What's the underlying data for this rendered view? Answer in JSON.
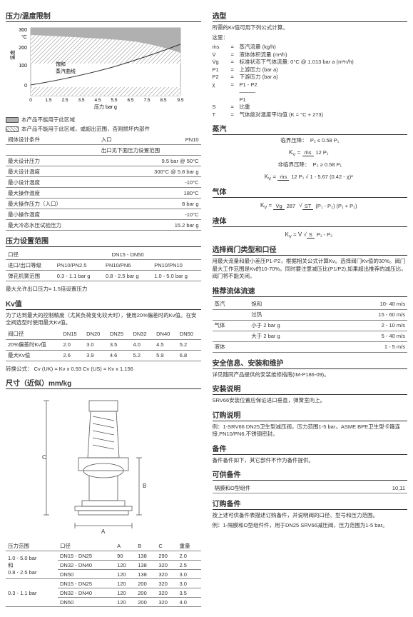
{
  "left": {
    "chart": {
      "title": "压力/温度限制",
      "ylabel": "温度",
      "yunit": "°C",
      "xlabel": "压力 bar g",
      "xlim": [
        0,
        9.5
      ],
      "ylim": [
        -20,
        300
      ],
      "yticks": [
        0,
        100,
        200,
        300
      ],
      "xticks": [
        0,
        1.5,
        2.5,
        3.5,
        4.5,
        5.5,
        6.5,
        7.5,
        8.5,
        9.5
      ],
      "curve_label_top": "饱和",
      "curve_label_bottom": "蒸汽曲线",
      "forbidden_fill": "#b0b0b0",
      "hatch_pattern": "diag",
      "legend1": "本产品不能用于此区域",
      "legend2": "本产品不能用于此区域，或超出范围，否则损坏内部件"
    },
    "design_table": {
      "title_row": [
        "阀体设计条件",
        "入口",
        "PN10"
      ],
      "outlet_row": "出口见下面压力设置范围",
      "rows": [
        [
          "最大设计压力",
          "9.5 bar @ 50°C"
        ],
        [
          "最大设计温度",
          "300°C @ 5.8 bar g"
        ],
        [
          "最小设计温度",
          "-10°C"
        ],
        [
          "最大操作温度",
          "180°C"
        ],
        [
          "最大操作压力（入口）",
          "8 bar g"
        ],
        [
          "最小操作温度",
          "-10°C"
        ],
        [
          "最大冷态水压试验压力",
          "15.2 bar g"
        ]
      ]
    },
    "pressure_range": {
      "title": "压力设置范围",
      "header": [
        "口径",
        "DN15 - DN50"
      ],
      "rows": [
        [
          "进口/出口等级",
          "PN10/PN2.5",
          "PN10/PN6",
          "PN10/PN10"
        ],
        [
          "弹花机簧范围",
          "0.3 - 1.1 bar g",
          "0.8 - 2.5 bar g",
          "1.0 - 5.0 bar g"
        ]
      ],
      "note": "最大允许出口压力= 1.5倍设置压力"
    },
    "kv": {
      "title": "Kv值",
      "intro": "为了达到最大的控制精度（尤其负荷变化较大时），使用20%偏差时的Kv值。在安全阀选型时使用最大Kv值。",
      "header": [
        "阀口径",
        "DN15",
        "DN20",
        "DN25",
        "DN32",
        "DN40",
        "DN50"
      ],
      "rows": [
        [
          "20%偏差时Kv值",
          "2.0",
          "3.0",
          "3.5",
          "4.0",
          "4.5",
          "5.2"
        ],
        [
          "最大Kv值",
          "2.6",
          "3.9",
          "4.6",
          "5.2",
          "5.9",
          "6.8"
        ]
      ],
      "conv": "转换公式：  Cv (UK) = Kv x 0.93    Cv (US) = Kv x 1.156"
    },
    "dims": {
      "title": "尺寸（近似）mm/kg",
      "header": [
        "压力范围",
        "口径",
        "A",
        "B",
        "C",
        "重量"
      ],
      "groups": [
        {
          "range": "1.0 - 5.0 bar\n和\n0.8 - 2.5 bar",
          "rows": [
            [
              "DN15 - DN25",
              "90",
              "138",
              "290",
              "2.0"
            ],
            [
              "DN32 - DN40",
              "120",
              "138",
              "320",
              "2.5"
            ],
            [
              "DN50",
              "120",
              "138",
              "320",
              "3.0"
            ]
          ]
        },
        {
          "range": "0.3 - 1.1 bar",
          "rows": [
            [
              "DN15 - DN25",
              "120",
              "200",
              "320",
              "3.0"
            ],
            [
              "DN32 - DN40",
              "120",
              "200",
              "320",
              "3.5"
            ],
            [
              "DN50",
              "120",
              "200",
              "320",
              "4.0"
            ]
          ]
        }
      ]
    }
  },
  "right": {
    "selection": {
      "title": "选型",
      "intro": "所需的Kv值可用下列公式计算。",
      "where": "这里：",
      "defs": [
        [
          "ṁs",
          "蒸汽流量 (kg/h)"
        ],
        [
          "V̇",
          "液体体积流量 (m³/h)"
        ],
        [
          "V̇g",
          "标准状态下气体流量: 0°C @ 1.013 bar a (m³n/h)"
        ],
        [
          "P1",
          "上游压力 (bar a)"
        ],
        [
          "P2",
          "下游压力 (bar a)"
        ],
        [
          "χ",
          "P1 - P2\n―――\nP1",
          ""
        ],
        [
          "S",
          "比重"
        ],
        [
          "T",
          "气体绝对温度平均值 (K = °C + 273)"
        ]
      ]
    },
    "steam": {
      "title": "蒸汽",
      "limit1_label": "临界压降：",
      "limit1_cond": "P₂ ≤ 0.58 P₁",
      "formula1_top": "ṁs",
      "formula1_bot": "12 P₁",
      "limit2_label": "非临界压降：",
      "limit2_cond": "P₂ ≥ 0.58 P₁",
      "formula2_top": "ṁs",
      "formula2_bot": "12 P₁ √ 1 - 5.67 (0.42 - χ)²"
    },
    "gas": {
      "title": "气体",
      "top": "V̇g",
      "bot": "287",
      "rad_top": "ST",
      "rad_bot": "(P₁ - P₂) (P₁ + P₂)"
    },
    "liquid": {
      "title": "液体",
      "rad_top": "S",
      "rad_bot": "P₁ - P₂"
    },
    "select2": {
      "title": "选择阀门类型和口径",
      "text": "用最大流量和最小差压P1-P2，根据相关公式计算Kv。选择阀门Kv值的30%。阀门最大工作范围是Kv的10-70%。同时要注意减压比(P1/P2),如果超出推荐的减压比，阀门将不能关闭。"
    },
    "velocity": {
      "title": "推荐流体流速",
      "rows": [
        [
          "蒸汽",
          "饱和",
          "10- 40 m/s"
        ],
        [
          "",
          "过热",
          "15 - 60 m/s"
        ],
        [
          "气体",
          "小于 2 bar g",
          "2 - 10 m/s"
        ],
        [
          "",
          "大于 2 bar g",
          "5 - 40 m/s"
        ],
        [
          "液体",
          "",
          "1 - 5 m/s"
        ]
      ]
    },
    "safety": {
      "title": "安全信息、安装和维护",
      "text": "详见随同产品提供的安装维修指南(IM-P186-09)。"
    },
    "install": {
      "title": "安装说明",
      "text": "SRV66安装位置应保证进口垂直，弹簧室向上。"
    },
    "order": {
      "title": "订购说明",
      "text": "例：1-SRV66 DN25卫生型减压阀，压力范围1-5 bar，ASME BPE卫生型卡箍连接,PN10/PN6,不锈钢密封。"
    },
    "spare": {
      "title": "备件",
      "text": "备件备件如下，其它部件不作为备件提供。"
    },
    "avail": {
      "title": "可供备件",
      "row": [
        "隔膜和O型组件",
        "10,11"
      ]
    },
    "order2": {
      "title": "订购备件",
      "text": "按上述可供备件表描述订购备件，并说明阀的口径、型号和压力范围。",
      "text2": "例：1-隔膜和O型组件件，用于DN25 SRV66减压阀，压力范围为1-5 bar。"
    }
  }
}
